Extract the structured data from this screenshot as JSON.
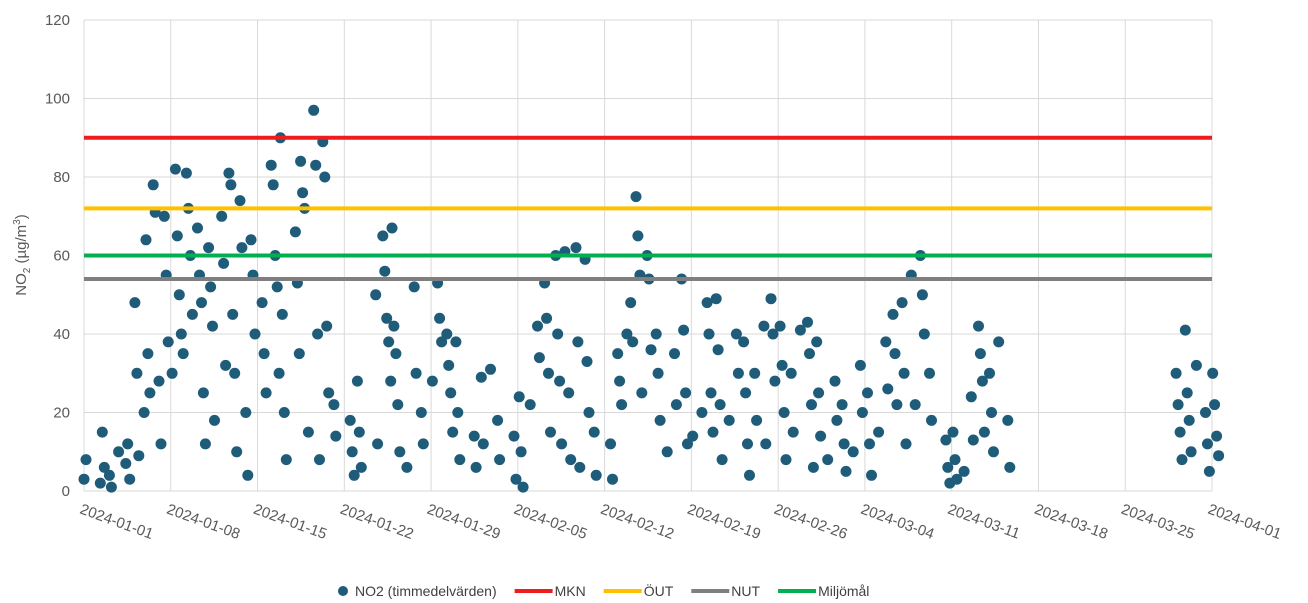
{
  "chart_data": {
    "type": "scatter",
    "ylabel": {
      "base": "NO",
      "sub": "2",
      "unit_open": " (µg/m",
      "sup": "3",
      "unit_close": ")"
    },
    "ylim": [
      0,
      120
    ],
    "yticks": [
      0,
      20,
      40,
      60,
      80,
      100,
      120
    ],
    "xlim": [
      "2024-01-01",
      "2024-04-01"
    ],
    "xticks": [
      "2024-01-01",
      "2024-01-08",
      "2024-01-15",
      "2024-01-22",
      "2024-01-29",
      "2024-02-05",
      "2024-02-12",
      "2024-02-19",
      "2024-02-26",
      "2024-03-04",
      "2024-03-11",
      "2024-03-18",
      "2024-03-25",
      "2024-04-01"
    ],
    "grid": true,
    "legend_position": "bottom",
    "series": [
      {
        "name": "NO2 (timmedelvärden)",
        "kind": "scatter",
        "color": "#1f5c7a",
        "points": [
          [
            "2024-01-01",
            3
          ],
          [
            "2024-01-01",
            8
          ],
          [
            "2024-01-02",
            2
          ],
          [
            "2024-01-02",
            15
          ],
          [
            "2024-01-02",
            6
          ],
          [
            "2024-01-03",
            10
          ],
          [
            "2024-01-03",
            4
          ],
          [
            "2024-01-03",
            1
          ],
          [
            "2024-01-04",
            7
          ],
          [
            "2024-01-04",
            12
          ],
          [
            "2024-01-04",
            3
          ],
          [
            "2024-01-05",
            20
          ],
          [
            "2024-01-05",
            48
          ],
          [
            "2024-01-05",
            30
          ],
          [
            "2024-01-05",
            9
          ],
          [
            "2024-01-06",
            78
          ],
          [
            "2024-01-06",
            71
          ],
          [
            "2024-01-06",
            64
          ],
          [
            "2024-01-06",
            35
          ],
          [
            "2024-01-06",
            25
          ],
          [
            "2024-01-07",
            70
          ],
          [
            "2024-01-07",
            55
          ],
          [
            "2024-01-07",
            38
          ],
          [
            "2024-01-07",
            28
          ],
          [
            "2024-01-07",
            12
          ],
          [
            "2024-01-08",
            82
          ],
          [
            "2024-01-08",
            65
          ],
          [
            "2024-01-08",
            50
          ],
          [
            "2024-01-08",
            40
          ],
          [
            "2024-01-08",
            30
          ],
          [
            "2024-01-09",
            81
          ],
          [
            "2024-01-09",
            72
          ],
          [
            "2024-01-09",
            60
          ],
          [
            "2024-01-09",
            45
          ],
          [
            "2024-01-09",
            35
          ],
          [
            "2024-01-10",
            67
          ],
          [
            "2024-01-10",
            55
          ],
          [
            "2024-01-10",
            48
          ],
          [
            "2024-01-10",
            25
          ],
          [
            "2024-01-10",
            12
          ],
          [
            "2024-01-11",
            62
          ],
          [
            "2024-01-11",
            52
          ],
          [
            "2024-01-11",
            42
          ],
          [
            "2024-01-11",
            18
          ],
          [
            "2024-01-12",
            81
          ],
          [
            "2024-01-12",
            78
          ],
          [
            "2024-01-12",
            70
          ],
          [
            "2024-01-12",
            58
          ],
          [
            "2024-01-12",
            32
          ],
          [
            "2024-01-13",
            74
          ],
          [
            "2024-01-13",
            62
          ],
          [
            "2024-01-13",
            45
          ],
          [
            "2024-01-13",
            30
          ],
          [
            "2024-01-13",
            10
          ],
          [
            "2024-01-14",
            64
          ],
          [
            "2024-01-14",
            55
          ],
          [
            "2024-01-14",
            40
          ],
          [
            "2024-01-14",
            20
          ],
          [
            "2024-01-14",
            4
          ],
          [
            "2024-01-15",
            48
          ],
          [
            "2024-01-15",
            35
          ],
          [
            "2024-01-15",
            25
          ],
          [
            "2024-01-16",
            90
          ],
          [
            "2024-01-16",
            83
          ],
          [
            "2024-01-16",
            78
          ],
          [
            "2024-01-16",
            60
          ],
          [
            "2024-01-16",
            52
          ],
          [
            "2024-01-16",
            30
          ],
          [
            "2024-01-17",
            45
          ],
          [
            "2024-01-17",
            20
          ],
          [
            "2024-01-17",
            8
          ],
          [
            "2024-01-18",
            84
          ],
          [
            "2024-01-18",
            76
          ],
          [
            "2024-01-18",
            72
          ],
          [
            "2024-01-18",
            66
          ],
          [
            "2024-01-18",
            53
          ],
          [
            "2024-01-18",
            35
          ],
          [
            "2024-01-19",
            97
          ],
          [
            "2024-01-19",
            83
          ],
          [
            "2024-01-19",
            40
          ],
          [
            "2024-01-19",
            15
          ],
          [
            "2024-01-20",
            89
          ],
          [
            "2024-01-20",
            80
          ],
          [
            "2024-01-20",
            42
          ],
          [
            "2024-01-20",
            25
          ],
          [
            "2024-01-20",
            8
          ],
          [
            "2024-01-21",
            22
          ],
          [
            "2024-01-21",
            14
          ],
          [
            "2024-01-22",
            18
          ],
          [
            "2024-01-22",
            10
          ],
          [
            "2024-01-22",
            4
          ],
          [
            "2024-01-23",
            28
          ],
          [
            "2024-01-23",
            15
          ],
          [
            "2024-01-23",
            6
          ],
          [
            "2024-01-24",
            50
          ],
          [
            "2024-01-24",
            12
          ],
          [
            "2024-01-25",
            67
          ],
          [
            "2024-01-25",
            65
          ],
          [
            "2024-01-25",
            56
          ],
          [
            "2024-01-25",
            44
          ],
          [
            "2024-01-25",
            38
          ],
          [
            "2024-01-25",
            28
          ],
          [
            "2024-01-26",
            42
          ],
          [
            "2024-01-26",
            35
          ],
          [
            "2024-01-26",
            22
          ],
          [
            "2024-01-26",
            10
          ],
          [
            "2024-01-27",
            52
          ],
          [
            "2024-01-27",
            30
          ],
          [
            "2024-01-27",
            6
          ],
          [
            "2024-01-28",
            20
          ],
          [
            "2024-01-28",
            12
          ],
          [
            "2024-01-29",
            53
          ],
          [
            "2024-01-29",
            44
          ],
          [
            "2024-01-29",
            38
          ],
          [
            "2024-01-29",
            28
          ],
          [
            "2024-01-30",
            40
          ],
          [
            "2024-01-30",
            32
          ],
          [
            "2024-01-30",
            25
          ],
          [
            "2024-01-30",
            15
          ],
          [
            "2024-01-31",
            38
          ],
          [
            "2024-01-31",
            20
          ],
          [
            "2024-01-31",
            8
          ],
          [
            "2024-02-01",
            14
          ],
          [
            "2024-02-01",
            6
          ],
          [
            "2024-02-02",
            31
          ],
          [
            "2024-02-02",
            29
          ],
          [
            "2024-02-02",
            12
          ],
          [
            "2024-02-03",
            18
          ],
          [
            "2024-02-03",
            8
          ],
          [
            "2024-02-04",
            14
          ],
          [
            "2024-02-04",
            3
          ],
          [
            "2024-02-05",
            24
          ],
          [
            "2024-02-05",
            10
          ],
          [
            "2024-02-05",
            1
          ],
          [
            "2024-02-06",
            42
          ],
          [
            "2024-02-06",
            34
          ],
          [
            "2024-02-06",
            22
          ],
          [
            "2024-02-07",
            53
          ],
          [
            "2024-02-07",
            44
          ],
          [
            "2024-02-07",
            30
          ],
          [
            "2024-02-07",
            15
          ],
          [
            "2024-02-08",
            61
          ],
          [
            "2024-02-08",
            60
          ],
          [
            "2024-02-08",
            40
          ],
          [
            "2024-02-08",
            28
          ],
          [
            "2024-02-08",
            12
          ],
          [
            "2024-02-09",
            62
          ],
          [
            "2024-02-09",
            38
          ],
          [
            "2024-02-09",
            25
          ],
          [
            "2024-02-09",
            8
          ],
          [
            "2024-02-10",
            59
          ],
          [
            "2024-02-10",
            33
          ],
          [
            "2024-02-10",
            20
          ],
          [
            "2024-02-10",
            6
          ],
          [
            "2024-02-11",
            15
          ],
          [
            "2024-02-11",
            4
          ],
          [
            "2024-02-12",
            12
          ],
          [
            "2024-02-12",
            3
          ],
          [
            "2024-02-13",
            40
          ],
          [
            "2024-02-13",
            35
          ],
          [
            "2024-02-13",
            28
          ],
          [
            "2024-02-13",
            22
          ],
          [
            "2024-02-14",
            75
          ],
          [
            "2024-02-14",
            65
          ],
          [
            "2024-02-14",
            55
          ],
          [
            "2024-02-14",
            48
          ],
          [
            "2024-02-14",
            38
          ],
          [
            "2024-02-15",
            60
          ],
          [
            "2024-02-15",
            54
          ],
          [
            "2024-02-15",
            36
          ],
          [
            "2024-02-15",
            25
          ],
          [
            "2024-02-16",
            40
          ],
          [
            "2024-02-16",
            30
          ],
          [
            "2024-02-16",
            18
          ],
          [
            "2024-02-17",
            35
          ],
          [
            "2024-02-17",
            22
          ],
          [
            "2024-02-17",
            10
          ],
          [
            "2024-02-18",
            54
          ],
          [
            "2024-02-18",
            41
          ],
          [
            "2024-02-18",
            25
          ],
          [
            "2024-02-18",
            12
          ],
          [
            "2024-02-19",
            20
          ],
          [
            "2024-02-19",
            14
          ],
          [
            "2024-02-20",
            48
          ],
          [
            "2024-02-20",
            40
          ],
          [
            "2024-02-20",
            25
          ],
          [
            "2024-02-20",
            15
          ],
          [
            "2024-02-21",
            49
          ],
          [
            "2024-02-21",
            36
          ],
          [
            "2024-02-21",
            22
          ],
          [
            "2024-02-21",
            8
          ],
          [
            "2024-02-22",
            40
          ],
          [
            "2024-02-22",
            30
          ],
          [
            "2024-02-22",
            18
          ],
          [
            "2024-02-23",
            38
          ],
          [
            "2024-02-23",
            25
          ],
          [
            "2024-02-23",
            12
          ],
          [
            "2024-02-23",
            4
          ],
          [
            "2024-02-24",
            42
          ],
          [
            "2024-02-24",
            30
          ],
          [
            "2024-02-24",
            18
          ],
          [
            "2024-02-25",
            49
          ],
          [
            "2024-02-25",
            40
          ],
          [
            "2024-02-25",
            28
          ],
          [
            "2024-02-25",
            12
          ],
          [
            "2024-02-26",
            42
          ],
          [
            "2024-02-26",
            32
          ],
          [
            "2024-02-26",
            20
          ],
          [
            "2024-02-26",
            8
          ],
          [
            "2024-02-27",
            41
          ],
          [
            "2024-02-27",
            30
          ],
          [
            "2024-02-27",
            15
          ],
          [
            "2024-02-28",
            43
          ],
          [
            "2024-02-28",
            35
          ],
          [
            "2024-02-28",
            22
          ],
          [
            "2024-02-28",
            6
          ],
          [
            "2024-02-29",
            38
          ],
          [
            "2024-02-29",
            25
          ],
          [
            "2024-02-29",
            14
          ],
          [
            "2024-03-01",
            28
          ],
          [
            "2024-03-01",
            18
          ],
          [
            "2024-03-01",
            8
          ],
          [
            "2024-03-02",
            22
          ],
          [
            "2024-03-02",
            12
          ],
          [
            "2024-03-02",
            5
          ],
          [
            "2024-03-03",
            32
          ],
          [
            "2024-03-03",
            20
          ],
          [
            "2024-03-03",
            10
          ],
          [
            "2024-03-04",
            25
          ],
          [
            "2024-03-04",
            12
          ],
          [
            "2024-03-04",
            4
          ],
          [
            "2024-03-05",
            38
          ],
          [
            "2024-03-05",
            26
          ],
          [
            "2024-03-05",
            15
          ],
          [
            "2024-03-06",
            45
          ],
          [
            "2024-03-06",
            35
          ],
          [
            "2024-03-06",
            22
          ],
          [
            "2024-03-07",
            55
          ],
          [
            "2024-03-07",
            48
          ],
          [
            "2024-03-07",
            30
          ],
          [
            "2024-03-07",
            12
          ],
          [
            "2024-03-08",
            60
          ],
          [
            "2024-03-08",
            50
          ],
          [
            "2024-03-08",
            40
          ],
          [
            "2024-03-08",
            22
          ],
          [
            "2024-03-09",
            30
          ],
          [
            "2024-03-09",
            18
          ],
          [
            "2024-03-10",
            13
          ],
          [
            "2024-03-10",
            6
          ],
          [
            "2024-03-10",
            2
          ],
          [
            "2024-03-11",
            15
          ],
          [
            "2024-03-11",
            8
          ],
          [
            "2024-03-11",
            3
          ],
          [
            "2024-03-12",
            24
          ],
          [
            "2024-03-12",
            13
          ],
          [
            "2024-03-12",
            5
          ],
          [
            "2024-03-13",
            42
          ],
          [
            "2024-03-13",
            35
          ],
          [
            "2024-03-13",
            28
          ],
          [
            "2024-03-13",
            15
          ],
          [
            "2024-03-14",
            38
          ],
          [
            "2024-03-14",
            30
          ],
          [
            "2024-03-14",
            20
          ],
          [
            "2024-03-14",
            10
          ],
          [
            "2024-03-15",
            18
          ],
          [
            "2024-03-15",
            6
          ],
          [
            "2024-03-29",
            41
          ],
          [
            "2024-03-29",
            30
          ],
          [
            "2024-03-29",
            22
          ],
          [
            "2024-03-29",
            15
          ],
          [
            "2024-03-29",
            8
          ],
          [
            "2024-03-30",
            32
          ],
          [
            "2024-03-30",
            25
          ],
          [
            "2024-03-30",
            18
          ],
          [
            "2024-03-30",
            10
          ],
          [
            "2024-03-31",
            20
          ],
          [
            "2024-03-31",
            12
          ],
          [
            "2024-03-31",
            5
          ],
          [
            "2024-04-01",
            30
          ],
          [
            "2024-04-01",
            22
          ],
          [
            "2024-04-01",
            14
          ],
          [
            "2024-04-01",
            9
          ]
        ]
      },
      {
        "name": "MKN",
        "kind": "hline",
        "value": 90,
        "color": "#ee1c1c"
      },
      {
        "name": "ÖUT",
        "kind": "hline",
        "value": 72,
        "color": "#ffc000"
      },
      {
        "name": "NUT",
        "kind": "hline",
        "value": 54,
        "color": "#7f7f7f"
      },
      {
        "name": "Miljömål",
        "kind": "hline",
        "value": 60,
        "color": "#00b050"
      }
    ]
  }
}
